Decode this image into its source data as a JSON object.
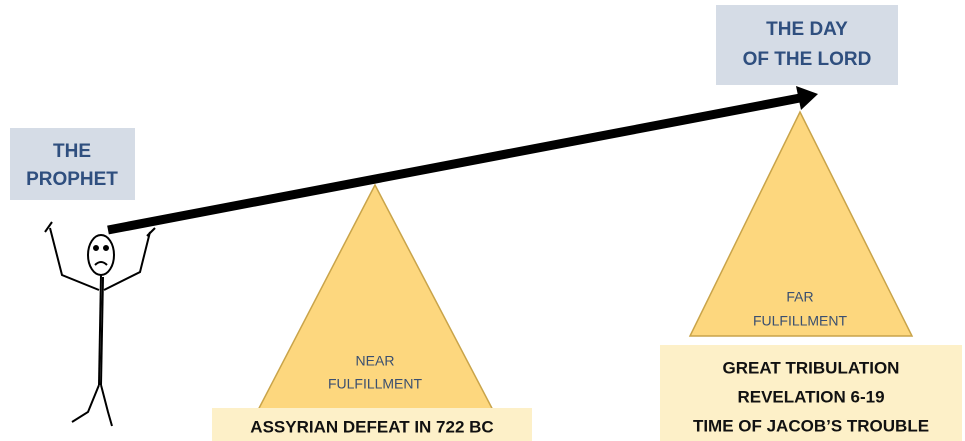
{
  "prophet": {
    "lines": [
      "THE",
      "PROPHET"
    ]
  },
  "day_of_the_lord": {
    "lines": [
      "THE DAY",
      "OF THE LORD"
    ]
  },
  "near": {
    "label_lines": [
      "NEAR",
      "FULFILLMENT"
    ],
    "caption_lines": [
      "ASSYRIAN DEFEAT IN 722 BC"
    ]
  },
  "far": {
    "label_lines": [
      "FAR",
      "FULFILLMENT"
    ],
    "caption_lines": [
      "GREAT TRIBULATION",
      "REVELATION 6-19",
      "TIME OF JACOB’S TROUBLE"
    ]
  }
}
